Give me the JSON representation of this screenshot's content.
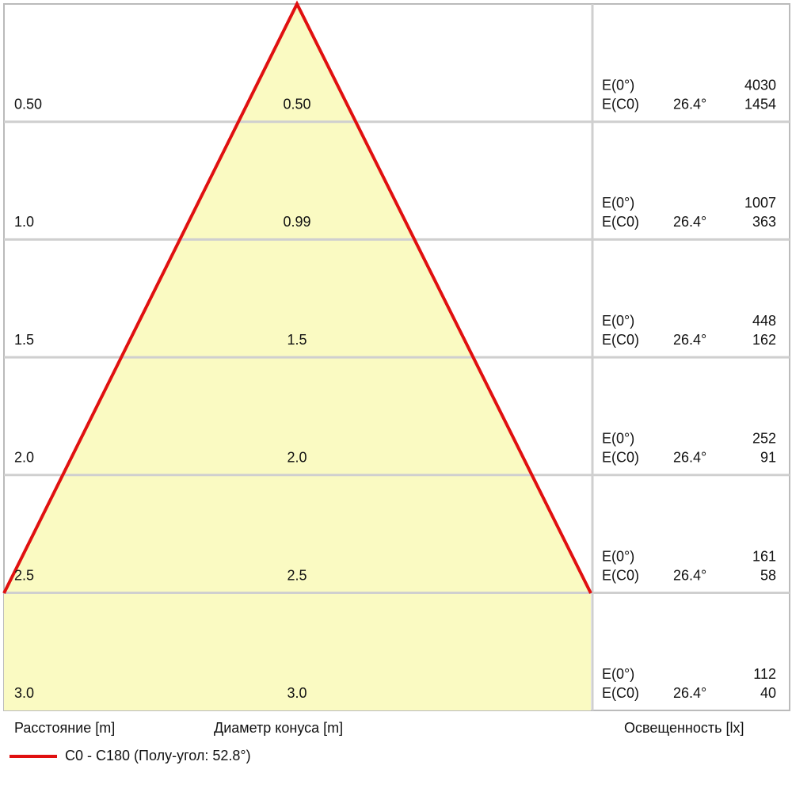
{
  "rows": [
    {
      "distance": "0.50",
      "diameter": "0.50",
      "e0_label": "E(0°)",
      "e0": "4030",
      "ec0_label": "E(C0)",
      "angle": "26.4°",
      "ec0": "1454"
    },
    {
      "distance": "1.0",
      "diameter": "0.99",
      "e0_label": "E(0°)",
      "e0": "1007",
      "ec0_label": "E(C0)",
      "angle": "26.4°",
      "ec0": "363"
    },
    {
      "distance": "1.5",
      "diameter": "1.5",
      "e0_label": "E(0°)",
      "e0": "448",
      "ec0_label": "E(C0)",
      "angle": "26.4°",
      "ec0": "162"
    },
    {
      "distance": "2.0",
      "diameter": "2.0",
      "e0_label": "E(0°)",
      "e0": "252",
      "ec0_label": "E(C0)",
      "angle": "26.4°",
      "ec0": "91"
    },
    {
      "distance": "2.5",
      "diameter": "2.5",
      "e0_label": "E(0°)",
      "e0": "161",
      "ec0_label": "E(C0)",
      "angle": "26.4°",
      "ec0": "58"
    },
    {
      "distance": "3.0",
      "diameter": "3.0",
      "e0_label": "E(0°)",
      "e0": "112",
      "ec0_label": "E(C0)",
      "angle": "26.4°",
      "ec0": "40"
    }
  ],
  "footer": {
    "distance_label": "Расстояние [m]",
    "diameter_label": "Диаметр конуса [m]",
    "illuminance_label": "Освещенность [lx]"
  },
  "legend": {
    "label": "C0 - C180 (Полу-угол: 52.8°)"
  }
}
